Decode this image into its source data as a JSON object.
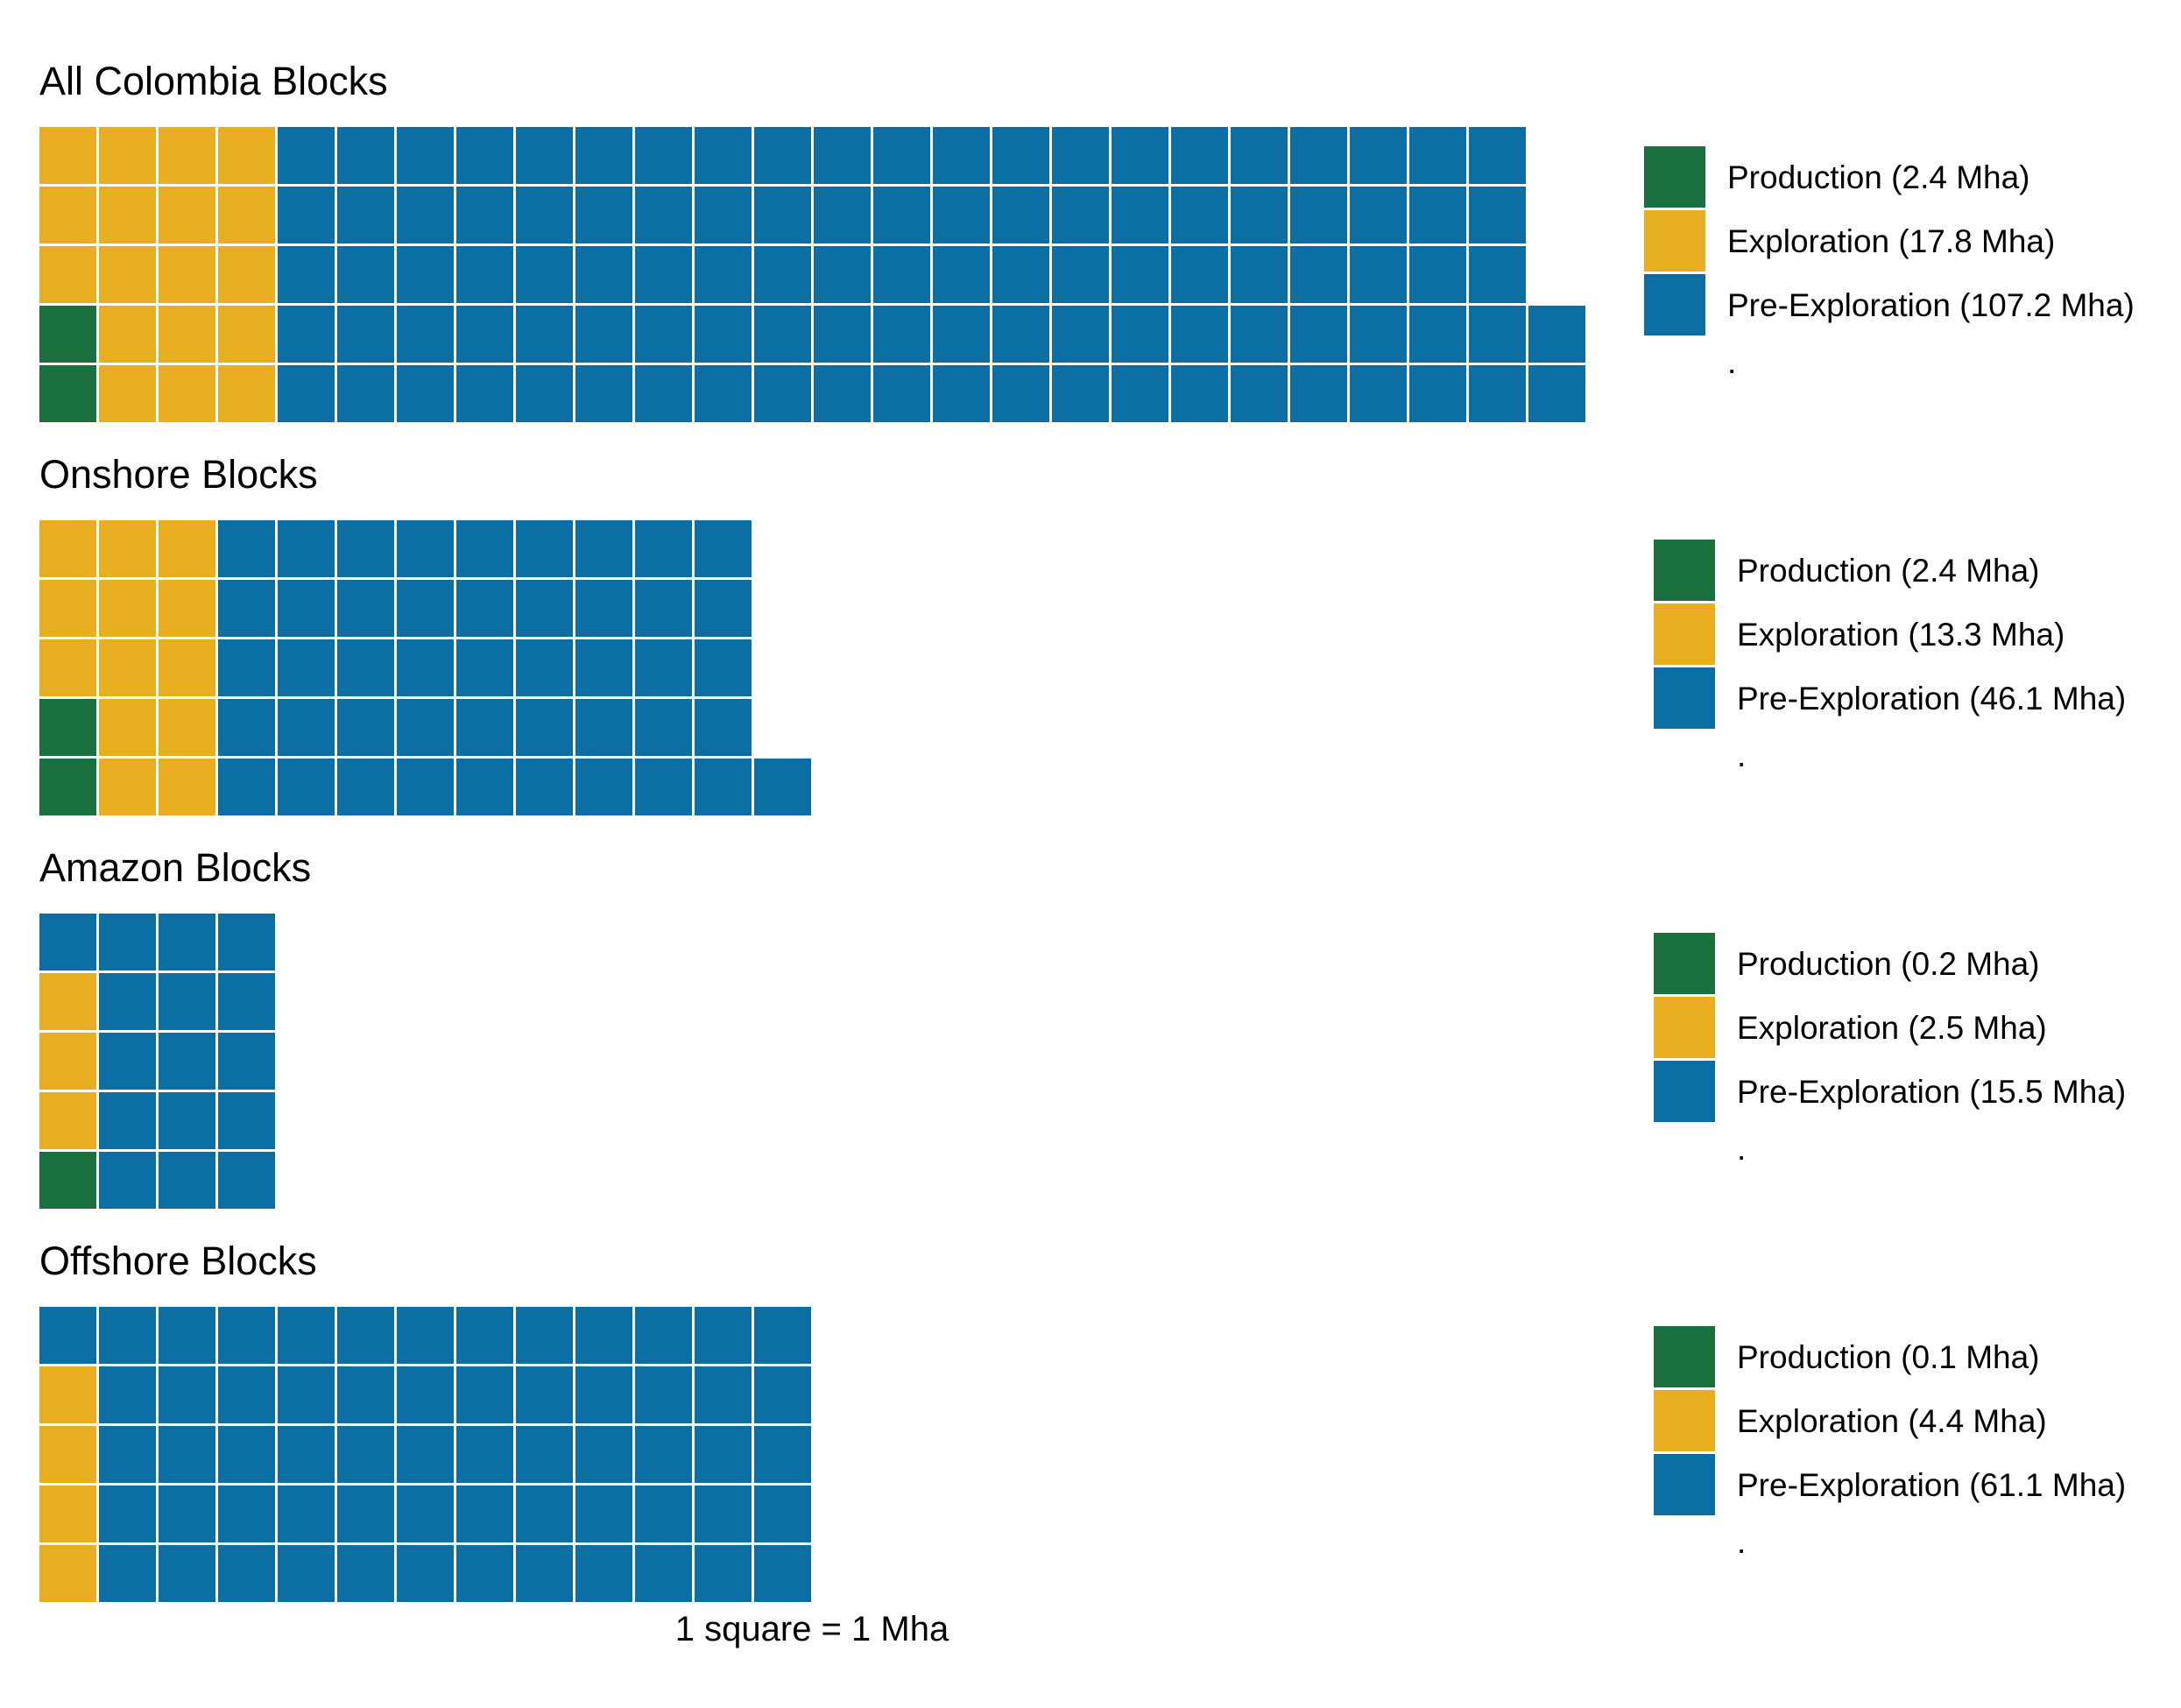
{
  "colors": {
    "production": "#1b7040",
    "exploration": "#e8ae1f",
    "pre_exploration": "#0b6fa4",
    "background": "#ffffff"
  },
  "chart_data": [
    {
      "type": "waffle",
      "title": "All Colombia Blocks",
      "rows": 5,
      "categories": [
        "Production",
        "Exploration",
        "Pre-Exploration"
      ],
      "values": [
        2.4,
        17.8,
        107.2
      ],
      "squares": [
        2,
        18,
        107
      ],
      "unit": "Mha",
      "legend": {
        "labels": [
          "Production (2.4 Mha)",
          "Exploration (17.8 Mha)",
          "Pre-Exploration (107.2 Mha)"
        ],
        "extra": "."
      }
    },
    {
      "type": "waffle",
      "title": "Onshore Blocks",
      "rows": 5,
      "categories": [
        "Production",
        "Exploration",
        "Pre-Exploration"
      ],
      "values": [
        2.4,
        13.3,
        46.1
      ],
      "squares": [
        2,
        13,
        46
      ],
      "unit": "Mha",
      "legend": {
        "labels": [
          "Production (2.4 Mha)",
          "Exploration (13.3 Mha)",
          "Pre-Exploration (46.1 Mha)"
        ],
        "extra": "."
      }
    },
    {
      "type": "waffle",
      "title": "Amazon Blocks",
      "rows": 5,
      "categories": [
        "Production",
        "Exploration",
        "Pre-Exploration"
      ],
      "values": [
        0.2,
        2.5,
        15.5
      ],
      "squares": [
        1,
        3,
        16
      ],
      "unit": "Mha",
      "legend": {
        "labels": [
          "Production (0.2 Mha)",
          "Exploration (2.5 Mha)",
          "Pre-Exploration (15.5 Mha)"
        ],
        "extra": "."
      }
    },
    {
      "type": "waffle",
      "title": "Offshore Blocks",
      "rows": 5,
      "categories": [
        "Production",
        "Exploration",
        "Pre-Exploration"
      ],
      "values": [
        0.1,
        4.4,
        61.1
      ],
      "squares": [
        0,
        4,
        61
      ],
      "unit": "Mha",
      "legend": {
        "labels": [
          "Production (0.1 Mha)",
          "Exploration (4.4 Mha)",
          "Pre-Exploration (61.1 Mha)"
        ],
        "extra": "."
      }
    }
  ],
  "caption": "1 square = 1 Mha"
}
